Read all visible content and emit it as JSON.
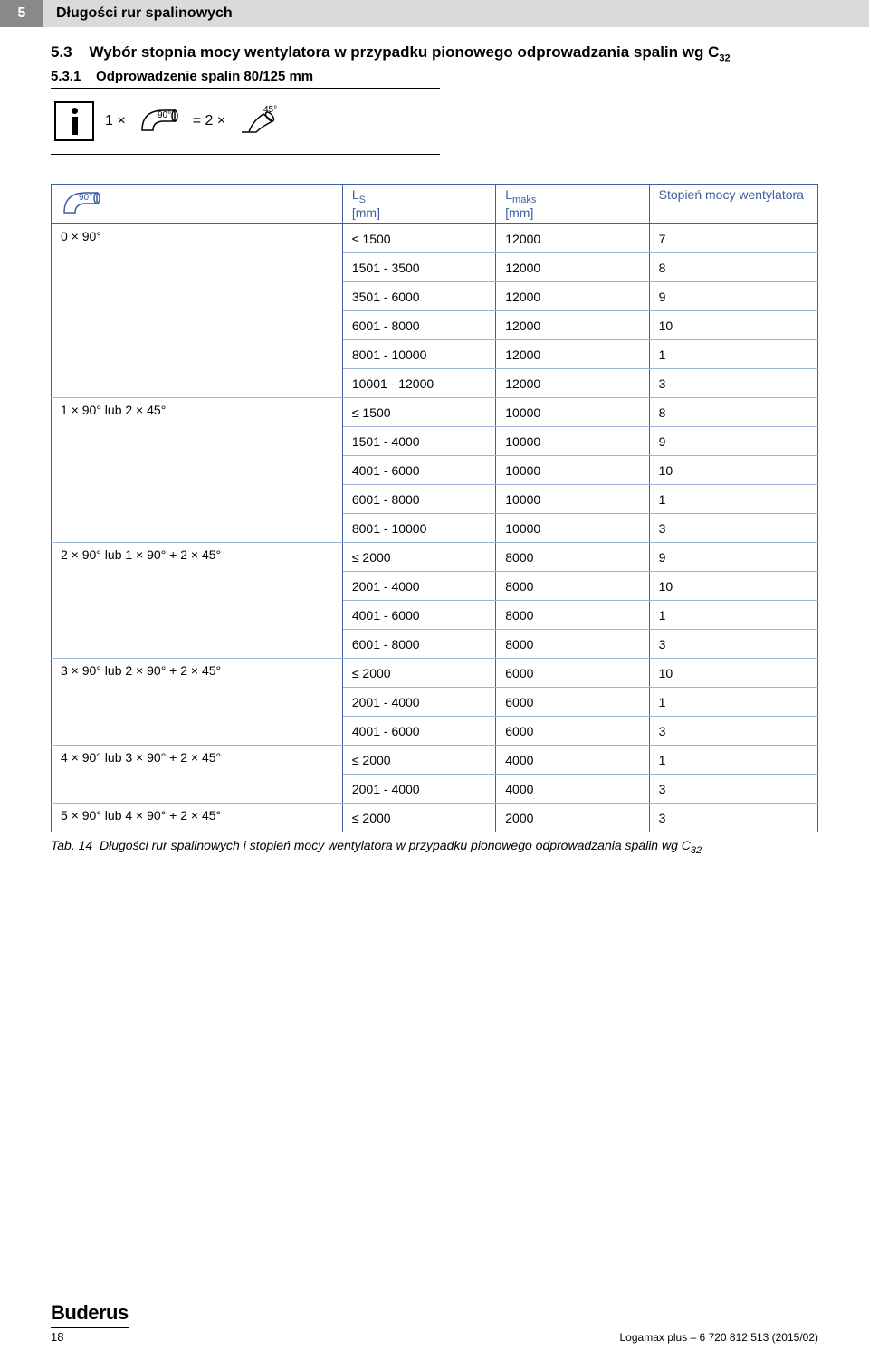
{
  "header": {
    "num": "5",
    "title": "Długości rur spalinowych"
  },
  "section": {
    "num": "5.3",
    "title": "Wybór stopnia mocy wentylatora w przypadku pionowego odprowadzania spalin wg C",
    "title_sub": "32",
    "sub_num": "5.3.1",
    "sub_title": "Odprowadzenie spalin 80/125 mm"
  },
  "info_formula": {
    "lhs": "1 ×",
    "a90": "90°",
    "eq": "= 2 ×",
    "a45": "45°"
  },
  "table": {
    "headers": {
      "col0_icon": "90°",
      "col1_top": "L",
      "col1_sub": "S",
      "col1_unit": "[mm]",
      "col2_top": "L",
      "col2_sub": "maks",
      "col2_unit": "[mm]",
      "col3": "Stopień mocy wentylatora"
    },
    "colors": {
      "accent": "#3c5fa5",
      "grid_light": "#9fb3d8",
      "header_gray": "#d9dadb",
      "num_gray": "#888a8c"
    },
    "groups": [
      {
        "label": "0 × 90°",
        "rows": [
          {
            "ls": "≤ 1500",
            "lmax": "12000",
            "st": "7"
          },
          {
            "ls": "1501 - 3500",
            "lmax": "12000",
            "st": "8"
          },
          {
            "ls": "3501 - 6000",
            "lmax": "12000",
            "st": "9"
          },
          {
            "ls": "6001 - 8000",
            "lmax": "12000",
            "st": "10"
          },
          {
            "ls": "8001 - 10000",
            "lmax": "12000",
            "st": "1"
          },
          {
            "ls": "10001 - 12000",
            "lmax": "12000",
            "st": "3"
          }
        ]
      },
      {
        "label": "1 × 90° lub 2 × 45°",
        "rows": [
          {
            "ls": "≤ 1500",
            "lmax": "10000",
            "st": "8"
          },
          {
            "ls": "1501 - 4000",
            "lmax": "10000",
            "st": "9"
          },
          {
            "ls": "4001 - 6000",
            "lmax": "10000",
            "st": "10"
          },
          {
            "ls": "6001 - 8000",
            "lmax": "10000",
            "st": "1"
          },
          {
            "ls": "8001 - 10000",
            "lmax": "10000",
            "st": "3"
          }
        ]
      },
      {
        "label": "2 × 90° lub 1 × 90° + 2 × 45°",
        "rows": [
          {
            "ls": "≤ 2000",
            "lmax": "8000",
            "st": "9"
          },
          {
            "ls": "2001 - 4000",
            "lmax": "8000",
            "st": "10"
          },
          {
            "ls": "4001 - 6000",
            "lmax": "8000",
            "st": "1"
          },
          {
            "ls": "6001 - 8000",
            "lmax": "8000",
            "st": "3"
          }
        ]
      },
      {
        "label": "3 × 90° lub 2 × 90° + 2 × 45°",
        "rows": [
          {
            "ls": "≤ 2000",
            "lmax": "6000",
            "st": "10"
          },
          {
            "ls": "2001 - 4000",
            "lmax": "6000",
            "st": "1"
          },
          {
            "ls": "4001 - 6000",
            "lmax": "6000",
            "st": "3"
          }
        ]
      },
      {
        "label": "4 × 90° lub 3 × 90° + 2 × 45°",
        "rows": [
          {
            "ls": "≤ 2000",
            "lmax": "4000",
            "st": "1"
          },
          {
            "ls": "2001 - 4000",
            "lmax": "4000",
            "st": "3"
          }
        ]
      },
      {
        "label": "5 × 90° lub 4 × 90° + 2 × 45°",
        "rows": [
          {
            "ls": "≤ 2000",
            "lmax": "2000",
            "st": "3"
          }
        ]
      }
    ]
  },
  "caption": {
    "prefix": "Tab. 14",
    "text": "Długości rur spalinowych i stopień mocy wentylatora w przypadku pionowego odprowadzania spalin wg C",
    "sub": "32"
  },
  "footer": {
    "logo": "Buderus",
    "page": "18",
    "right": "Logamax plus – 6 720 812 513 (2015/02)"
  }
}
